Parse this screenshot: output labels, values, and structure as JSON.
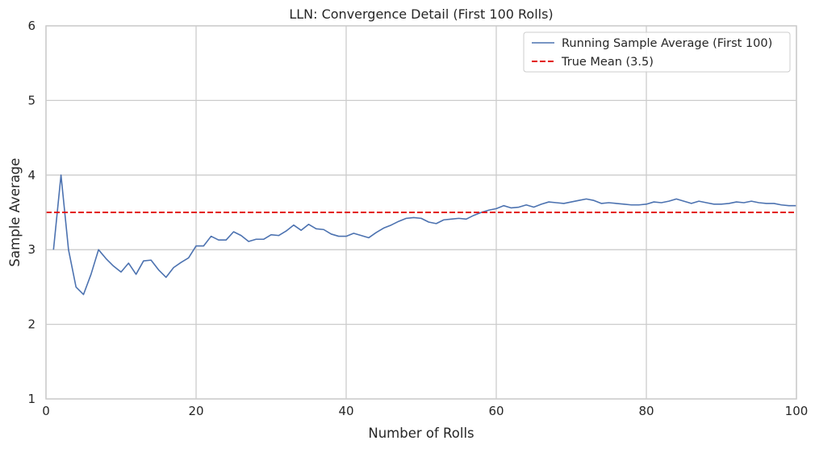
{
  "chart_data": {
    "type": "line",
    "title": "LLN: Convergence Detail (First 100 Rolls)",
    "xlabel": "Number of Rolls",
    "ylabel": "Sample Average",
    "xlim": [
      0,
      100
    ],
    "ylim": [
      1,
      6
    ],
    "xticks": [
      0,
      20,
      40,
      60,
      80,
      100
    ],
    "yticks": [
      1,
      2,
      3,
      4,
      5,
      6
    ],
    "grid": true,
    "legend_position": "top-right",
    "series": [
      {
        "name": "Running Sample Average (First 100)",
        "color": "#4c72b0",
        "style": "solid",
        "x": [
          1,
          2,
          3,
          4,
          5,
          6,
          7,
          8,
          9,
          10,
          11,
          12,
          13,
          14,
          15,
          16,
          17,
          18,
          19,
          20,
          21,
          22,
          23,
          24,
          25,
          26,
          27,
          28,
          29,
          30,
          31,
          32,
          33,
          34,
          35,
          36,
          37,
          38,
          39,
          40,
          41,
          42,
          43,
          44,
          45,
          46,
          47,
          48,
          49,
          50,
          51,
          52,
          53,
          54,
          55,
          56,
          57,
          58,
          59,
          60,
          61,
          62,
          63,
          64,
          65,
          66,
          67,
          68,
          69,
          70,
          71,
          72,
          73,
          74,
          75,
          76,
          77,
          78,
          79,
          80,
          81,
          82,
          83,
          84,
          85,
          86,
          87,
          88,
          89,
          90,
          91,
          92,
          93,
          94,
          95,
          96,
          97,
          98,
          99,
          100
        ],
        "values": [
          3.0,
          4.0,
          3.0,
          2.5,
          2.4,
          2.67,
          3.0,
          2.88,
          2.78,
          2.7,
          2.82,
          2.67,
          2.85,
          2.86,
          2.73,
          2.63,
          2.76,
          2.83,
          2.89,
          3.05,
          3.05,
          3.18,
          3.13,
          3.13,
          3.24,
          3.19,
          3.11,
          3.14,
          3.14,
          3.2,
          3.19,
          3.25,
          3.33,
          3.26,
          3.34,
          3.28,
          3.27,
          3.21,
          3.18,
          3.18,
          3.22,
          3.19,
          3.16,
          3.23,
          3.29,
          3.33,
          3.38,
          3.42,
          3.43,
          3.42,
          3.37,
          3.35,
          3.4,
          3.41,
          3.42,
          3.41,
          3.46,
          3.5,
          3.53,
          3.55,
          3.59,
          3.56,
          3.57,
          3.6,
          3.57,
          3.61,
          3.64,
          3.63,
          3.62,
          3.64,
          3.66,
          3.68,
          3.66,
          3.62,
          3.63,
          3.62,
          3.61,
          3.6,
          3.6,
          3.61,
          3.64,
          3.63,
          3.65,
          3.68,
          3.65,
          3.62,
          3.65,
          3.63,
          3.61,
          3.61,
          3.62,
          3.64,
          3.63,
          3.65,
          3.63,
          3.62,
          3.62,
          3.6,
          3.59,
          3.59
        ]
      },
      {
        "name": "True Mean (3.5)",
        "color": "#e3120b",
        "style": "dashed",
        "x": [
          0,
          100
        ],
        "values": [
          3.5,
          3.5
        ]
      }
    ]
  },
  "colors": {
    "grid": "#cccccc",
    "frame": "#cccccc",
    "text": "#262626",
    "legend_border": "#cccccc"
  }
}
